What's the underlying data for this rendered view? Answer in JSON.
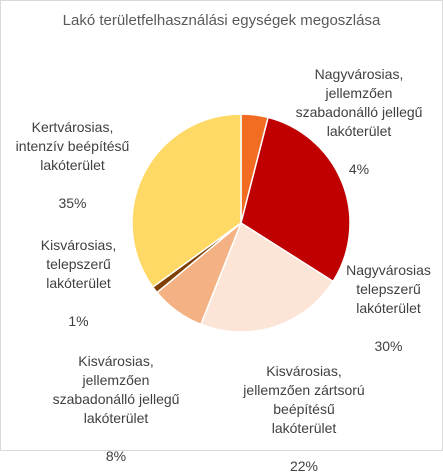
{
  "chart_data": {
    "type": "pie",
    "title": "Lakó területfelhasználási egységek megoszlása",
    "slices": [
      {
        "label": "Nagyvárosias,\njellemzően\nszabadonálló jellegű\nlakóterület",
        "value_label": "4%",
        "value": 4,
        "color": "#f26c22"
      },
      {
        "label": "Nagyvárosias\ntelepszerű\nlakóterület",
        "value_label": "30%",
        "value": 30,
        "color": "#c00000"
      },
      {
        "label": "Kisvárosias,\njellemzően zártsorú\nbeépítésű\nlakóterület",
        "value_label": "22%",
        "value": 22,
        "color": "#fce4d6"
      },
      {
        "label": "Kisvárosias,\njellemzően\nszabadonálló jellegű\nlakóterület",
        "value_label": "8%",
        "value": 8,
        "color": "#f4b183"
      },
      {
        "label": "Kisvárosias,\ntelepszerű\nlakóterület",
        "value_label": "1%",
        "value": 1,
        "color": "#7f3f00"
      },
      {
        "label": "Kertvárosias,\nintenzív beépítésű\nlakóterület",
        "value_label": "35%",
        "value": 35,
        "color": "#ffd966"
      }
    ]
  }
}
